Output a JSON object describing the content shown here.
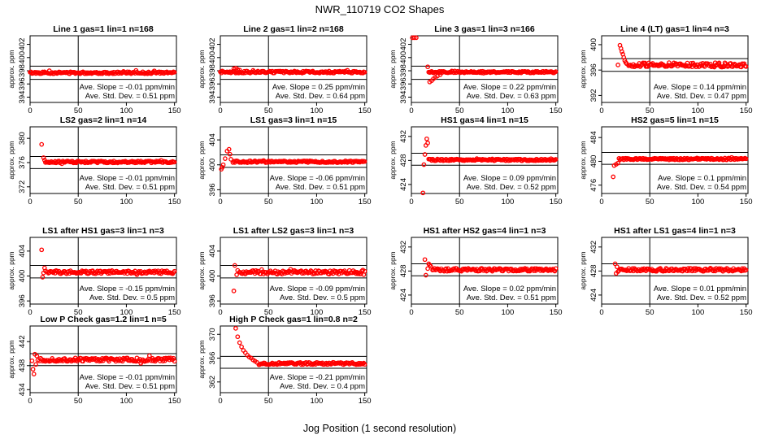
{
  "figure": {
    "title": "NWR_110719  CO2 Shapes",
    "xlabel": "Jog Position (1 second resolution)",
    "ylabel": "approx. ppm",
    "slope_prefix": "Ave. Slope = ",
    "slope_unit": "ppm/min",
    "std_prefix": "Ave. Std. Dev. = ",
    "std_unit": "ppm"
  },
  "colors": {
    "points": "#ff0000",
    "axis": "#000000"
  },
  "chart_data": [
    {
      "type": "scatter",
      "title": "Line 1 gas=1 lin=1 n=168",
      "xlim": [
        0,
        152
      ],
      "ylim": [
        393.2,
        403.3
      ],
      "yticks": [
        394,
        396,
        398,
        400,
        402
      ],
      "xticks": [
        0,
        50,
        100,
        150
      ],
      "vline": 50,
      "hlines": [
        398.7,
        396.7
      ],
      "slope": "-0.01",
      "std": "0.51",
      "mean": 397.7,
      "noise": 0.15,
      "start": 0,
      "spikes": []
    },
    {
      "type": "scatter",
      "title": "Line 2 gas=1 lin=2 n=168",
      "xlim": [
        0,
        152
      ],
      "ylim": [
        393.2,
        403.3
      ],
      "yticks": [
        394,
        396,
        398,
        400,
        402
      ],
      "xticks": [
        0,
        50,
        100,
        150
      ],
      "vline": 50,
      "hlines": [
        398.7,
        396.7
      ],
      "slope": "0.25",
      "std": "0.64",
      "mean": 397.8,
      "noise": 0.15,
      "start": 0,
      "spikes": [
        [
          14,
          398.3
        ],
        [
          16,
          398.4
        ],
        [
          18,
          398.2
        ],
        [
          20,
          398.1
        ]
      ]
    },
    {
      "type": "scatter",
      "title": "Line 3 gas=1 lin=3 n=166",
      "xlim": [
        0,
        152
      ],
      "ylim": [
        393.2,
        403.3
      ],
      "yticks": [
        394,
        396,
        398,
        400,
        402
      ],
      "xticks": [
        0,
        50,
        100,
        150
      ],
      "vline": 50,
      "hlines": [
        398.7,
        396.7
      ],
      "slope": "0.22",
      "std": "0.63",
      "mean": 397.8,
      "noise": 0.12,
      "start": 18,
      "spikes": [
        [
          1,
          403.0
        ],
        [
          3,
          403.0
        ],
        [
          5,
          403.0
        ],
        [
          17,
          398.6
        ],
        [
          19,
          396.3
        ],
        [
          21,
          396.5
        ],
        [
          23,
          396.8
        ],
        [
          25,
          397.0
        ],
        [
          27,
          397.2
        ],
        [
          30,
          397.4
        ]
      ]
    },
    {
      "type": "scatter",
      "title": "Line 4 (LT) gas=1 lin=4 n=3",
      "xlim": [
        0,
        152
      ],
      "ylim": [
        390.9,
        401.4
      ],
      "yticks": [
        392,
        396,
        400
      ],
      "xticks": [
        0,
        50,
        100,
        150
      ],
      "vline": 50,
      "hlines": [
        397.8,
        395.8
      ],
      "slope": "0.14",
      "std": "0.47",
      "mean": 396.8,
      "noise": 0.35,
      "start": 28,
      "spikes": [
        [
          17,
          396.8
        ],
        [
          19,
          399.9
        ],
        [
          20,
          399.4
        ],
        [
          21,
          398.9
        ],
        [
          22,
          398.5
        ],
        [
          23,
          398.0
        ],
        [
          24,
          397.5
        ],
        [
          25,
          397.2
        ],
        [
          26,
          397.0
        ]
      ]
    },
    {
      "type": "scatter",
      "title": "LS2 gas=2 lin=1 n=14",
      "xlim": [
        0,
        152
      ],
      "ylim": [
        370.9,
        381.9
      ],
      "yticks": [
        372,
        376,
        380
      ],
      "xticks": [
        0,
        50,
        100,
        150
      ],
      "vline": 50,
      "hlines": [
        377.0,
        375.0
      ],
      "slope": "-0.01",
      "std": "0.51",
      "mean": 376.1,
      "noise": 0.15,
      "start": 16,
      "spikes": [
        [
          12,
          379.0
        ],
        [
          14,
          376.8
        ],
        [
          15,
          376.4
        ]
      ]
    },
    {
      "type": "scatter",
      "title": "LS1 gas=3 lin=1 n=15",
      "xlim": [
        0,
        152
      ],
      "ylim": [
        395.4,
        406.1
      ],
      "yticks": [
        396,
        400,
        404
      ],
      "xticks": [
        0,
        50,
        100,
        150
      ],
      "vline": 50,
      "hlines": [
        401.6,
        399.6
      ],
      "slope": "-0.06",
      "std": "0.51",
      "mean": 400.5,
      "noise": 0.15,
      "start": 13,
      "spikes": [
        [
          1,
          399.3
        ],
        [
          2,
          399.6
        ],
        [
          3,
          400.0
        ],
        [
          5,
          401.0
        ],
        [
          7,
          402.2
        ],
        [
          9,
          402.5
        ],
        [
          10,
          401.7
        ],
        [
          11,
          400.9
        ]
      ]
    },
    {
      "type": "scatter",
      "title": "HS1 gas=4 lin=1 n=15",
      "xlim": [
        0,
        152
      ],
      "ylim": [
        422.5,
        433.6
      ],
      "yticks": [
        424,
        428,
        432
      ],
      "xticks": [
        0,
        50,
        100,
        150
      ],
      "vline": 50,
      "hlines": [
        429.2,
        427.2
      ],
      "slope": "0.09",
      "std": "0.52",
      "mean": 428.1,
      "noise": 0.15,
      "start": 18,
      "spikes": [
        [
          12,
          422.6
        ],
        [
          13,
          427.3
        ],
        [
          14,
          429.0
        ],
        [
          15,
          430.5
        ],
        [
          16,
          431.6
        ],
        [
          17,
          430.9
        ]
      ]
    },
    {
      "type": "scatter",
      "title": "HS2 gas=5 lin=1 n=15",
      "xlim": [
        0,
        152
      ],
      "ylim": [
        474.6,
        485.8
      ],
      "yticks": [
        476,
        480,
        484
      ],
      "xticks": [
        0,
        50,
        100,
        150
      ],
      "vline": 50,
      "hlines": [
        481.5,
        479.5
      ],
      "slope": "0.1",
      "std": "0.54",
      "mean": 480.4,
      "noise": 0.15,
      "start": 18,
      "spikes": [
        [
          12,
          477.4
        ],
        [
          13,
          479.3
        ],
        [
          15,
          479.5
        ],
        [
          17,
          479.7
        ]
      ]
    },
    {
      "type": "scatter",
      "title": "LS1 after HS1 gas=3 lin=1 n=3",
      "xlim": [
        0,
        152
      ],
      "ylim": [
        395.5,
        406.2
      ],
      "yticks": [
        396,
        400,
        404
      ],
      "xticks": [
        0,
        50,
        100,
        150
      ],
      "vline": 50,
      "hlines": [
        401.7,
        399.7
      ],
      "slope": "-0.15",
      "std": "0.5",
      "mean": 400.6,
      "noise": 0.25,
      "start": 18,
      "spikes": [
        [
          12,
          404.2
        ],
        [
          13,
          399.8
        ],
        [
          14,
          400.5
        ],
        [
          15,
          401.3
        ],
        [
          16,
          400.8
        ]
      ]
    },
    {
      "type": "scatter",
      "title": "LS1 after LS2 gas=3 lin=1 n=3",
      "xlim": [
        0,
        152
      ],
      "ylim": [
        395.5,
        406.2
      ],
      "yticks": [
        396,
        400,
        404
      ],
      "xticks": [
        0,
        50,
        100,
        150
      ],
      "vline": 50,
      "hlines": [
        401.7,
        399.7
      ],
      "slope": "-0.09",
      "std": "0.5",
      "mean": 400.6,
      "noise": 0.3,
      "start": 20,
      "spikes": [
        [
          14,
          397.6
        ],
        [
          15,
          401.7
        ],
        [
          17,
          400.2
        ],
        [
          18,
          400.9
        ]
      ]
    },
    {
      "type": "scatter",
      "title": "HS1 after HS2 gas=4 lin=1 n=3",
      "xlim": [
        0,
        152
      ],
      "ylim": [
        422.5,
        433.6
      ],
      "yticks": [
        424,
        428,
        432
      ],
      "xticks": [
        0,
        50,
        100,
        150
      ],
      "vline": 50,
      "hlines": [
        429.2,
        427.2
      ],
      "slope": "0.02",
      "std": "0.51",
      "mean": 428.2,
      "noise": 0.25,
      "start": 22,
      "spikes": [
        [
          14,
          429.9
        ],
        [
          15,
          427.3
        ],
        [
          17,
          428.4
        ],
        [
          18,
          429.2
        ],
        [
          19,
          429.0
        ],
        [
          20,
          428.8
        ]
      ]
    },
    {
      "type": "scatter",
      "title": "HS1 after LS1 gas=4 lin=1 n=3",
      "xlim": [
        0,
        152
      ],
      "ylim": [
        422.5,
        433.6
      ],
      "yticks": [
        424,
        428,
        432
      ],
      "xticks": [
        0,
        50,
        100,
        150
      ],
      "vline": 50,
      "hlines": [
        429.2,
        427.2
      ],
      "slope": "0.01",
      "std": "0.52",
      "mean": 428.2,
      "noise": 0.25,
      "start": 18,
      "spikes": [
        [
          14,
          429.2
        ],
        [
          15,
          427.6
        ],
        [
          16,
          428.7
        ],
        [
          17,
          427.9
        ]
      ]
    },
    {
      "type": "scatter",
      "title": "Low P Check gas=1.2 lin=1 n=5",
      "xlim": [
        0,
        152
      ],
      "ylim": [
        433.5,
        444.6
      ],
      "yticks": [
        434,
        438,
        442
      ],
      "xticks": [
        0,
        50,
        100,
        150
      ],
      "vline": 50,
      "hlines": [
        440.0,
        438.0
      ],
      "slope": "-0.01",
      "std": "0.51",
      "mean": 439.0,
      "noise": 0.3,
      "start": 10,
      "spikes": [
        [
          2,
          438.8
        ],
        [
          3,
          437.4
        ],
        [
          4,
          436.6
        ],
        [
          5,
          439.9
        ],
        [
          6,
          438.2
        ],
        [
          7,
          439.6
        ],
        [
          8,
          438.9
        ]
      ]
    },
    {
      "type": "scatter",
      "title": "High P Check gas=1 lin=0.8 n=2",
      "xlim": [
        0,
        152
      ],
      "ylim": [
        360.2,
        371.4
      ],
      "yticks": [
        362,
        366,
        370
      ],
      "xticks": [
        0,
        50,
        100,
        150
      ],
      "vline": 50,
      "hlines": [
        366.3,
        364.3
      ],
      "slope": "-0.21",
      "std": "0.4",
      "mean": 365.1,
      "noise": 0.2,
      "start": 40,
      "spikes": [
        [
          16,
          371.0
        ],
        [
          18,
          369.6
        ],
        [
          20,
          368.6
        ],
        [
          22,
          367.9
        ],
        [
          24,
          367.3
        ],
        [
          26,
          366.9
        ],
        [
          28,
          366.5
        ],
        [
          30,
          366.2
        ],
        [
          32,
          366.0
        ],
        [
          34,
          365.7
        ],
        [
          36,
          365.5
        ],
        [
          38,
          365.3
        ]
      ]
    }
  ]
}
